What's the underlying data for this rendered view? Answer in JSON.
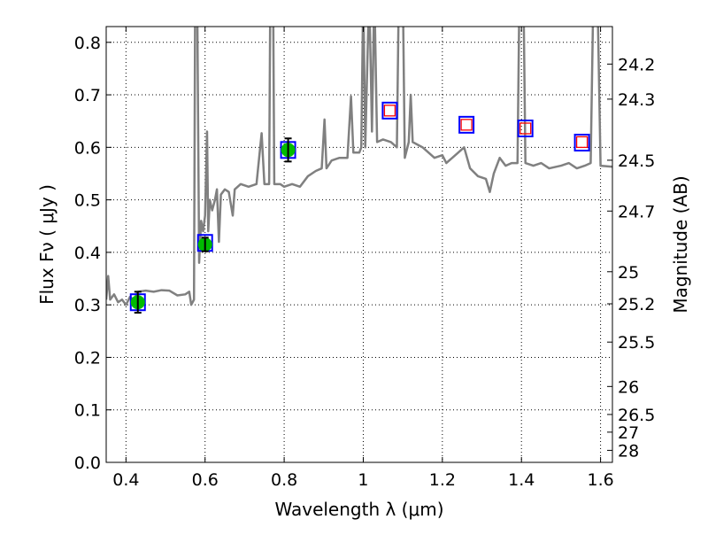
{
  "chart_data": {
    "type": "line",
    "xlabel": "Wavelength  λ (μm)",
    "ylabel": "Flux  Fν  ( μJy )",
    "ylabel_right": "Magnitude (AB)",
    "xlim": [
      0.35,
      1.63
    ],
    "ylim": [
      0.0,
      0.83
    ],
    "grid": true,
    "x_ticks": [
      0.4,
      0.6,
      0.8,
      1.0,
      1.2,
      1.4,
      1.6
    ],
    "x_tick_labels": [
      "0.4",
      "0.6",
      "0.8",
      "1",
      "1.2",
      "1.4",
      "1.6"
    ],
    "y_ticks": [
      0.0,
      0.1,
      0.2,
      0.3,
      0.4,
      0.5,
      0.6,
      0.7,
      0.8
    ],
    "y_tick_labels": [
      "0.0",
      "0.1",
      "0.2",
      "0.3",
      "0.4",
      "0.5",
      "0.6",
      "0.7",
      "0.8"
    ],
    "right_ticks": [
      24.2,
      24.3,
      24.5,
      24.7,
      25,
      25.2,
      25.5,
      26,
      26.5,
      27,
      28
    ],
    "right_tick_labels": [
      "24.2",
      "24.3",
      "24.5",
      "24.7",
      "25",
      "25.2",
      "25.5",
      "26",
      "26.5",
      "27",
      "28"
    ],
    "colors": {
      "spectrum": "#808080",
      "observed": "#00bb00",
      "model": "#0000ff",
      "predicted": "#ff0000",
      "error": "#000000"
    },
    "spectrum": [
      [
        0.35,
        0.31
      ],
      [
        0.355,
        0.355
      ],
      [
        0.36,
        0.31
      ],
      [
        0.37,
        0.32
      ],
      [
        0.38,
        0.305
      ],
      [
        0.39,
        0.31
      ],
      [
        0.4,
        0.3
      ],
      [
        0.41,
        0.315
      ],
      [
        0.42,
        0.31
      ],
      [
        0.43,
        0.325
      ],
      [
        0.45,
        0.327
      ],
      [
        0.47,
        0.325
      ],
      [
        0.49,
        0.328
      ],
      [
        0.51,
        0.327
      ],
      [
        0.53,
        0.318
      ],
      [
        0.55,
        0.32
      ],
      [
        0.56,
        0.325
      ],
      [
        0.565,
        0.3
      ],
      [
        0.572,
        0.31
      ],
      [
        0.575,
        0.9
      ],
      [
        0.58,
        0.9
      ],
      [
        0.585,
        0.38
      ],
      [
        0.59,
        0.46
      ],
      [
        0.595,
        0.44
      ],
      [
        0.6,
        0.47
      ],
      [
        0.605,
        0.63
      ],
      [
        0.608,
        0.44
      ],
      [
        0.612,
        0.5
      ],
      [
        0.618,
        0.48
      ],
      [
        0.625,
        0.5
      ],
      [
        0.63,
        0.52
      ],
      [
        0.635,
        0.42
      ],
      [
        0.64,
        0.51
      ],
      [
        0.65,
        0.52
      ],
      [
        0.66,
        0.515
      ],
      [
        0.67,
        0.47
      ],
      [
        0.675,
        0.52
      ],
      [
        0.69,
        0.53
      ],
      [
        0.71,
        0.525
      ],
      [
        0.73,
        0.53
      ],
      [
        0.743,
        0.627
      ],
      [
        0.75,
        0.53
      ],
      [
        0.762,
        0.53
      ],
      [
        0.765,
        0.9
      ],
      [
        0.772,
        0.9
      ],
      [
        0.775,
        0.53
      ],
      [
        0.79,
        0.53
      ],
      [
        0.8,
        0.525
      ],
      [
        0.82,
        0.53
      ],
      [
        0.84,
        0.525
      ],
      [
        0.86,
        0.545
      ],
      [
        0.88,
        0.555
      ],
      [
        0.895,
        0.56
      ],
      [
        0.902,
        0.653
      ],
      [
        0.907,
        0.56
      ],
      [
        0.92,
        0.575
      ],
      [
        0.94,
        0.58
      ],
      [
        0.96,
        0.58
      ],
      [
        0.969,
        0.697
      ],
      [
        0.975,
        0.59
      ],
      [
        0.99,
        0.59
      ],
      [
        0.995,
        0.6
      ],
      [
        1.0,
        0.9
      ],
      [
        1.005,
        0.6
      ],
      [
        1.015,
        0.9
      ],
      [
        1.022,
        0.63
      ],
      [
        1.028,
        0.9
      ],
      [
        1.035,
        0.61
      ],
      [
        1.05,
        0.615
      ],
      [
        1.07,
        0.61
      ],
      [
        1.085,
        0.6
      ],
      [
        1.09,
        0.9
      ],
      [
        1.1,
        0.9
      ],
      [
        1.105,
        0.58
      ],
      [
        1.115,
        0.61
      ],
      [
        1.12,
        0.7
      ],
      [
        1.125,
        0.61
      ],
      [
        1.15,
        0.6
      ],
      [
        1.18,
        0.58
      ],
      [
        1.2,
        0.585
      ],
      [
        1.21,
        0.57
      ],
      [
        1.24,
        0.59
      ],
      [
        1.255,
        0.6
      ],
      [
        1.27,
        0.56
      ],
      [
        1.29,
        0.545
      ],
      [
        1.31,
        0.54
      ],
      [
        1.32,
        0.515
      ],
      [
        1.33,
        0.55
      ],
      [
        1.345,
        0.58
      ],
      [
        1.36,
        0.565
      ],
      [
        1.375,
        0.57
      ],
      [
        1.39,
        0.57
      ],
      [
        1.395,
        0.9
      ],
      [
        1.405,
        0.9
      ],
      [
        1.41,
        0.57
      ],
      [
        1.43,
        0.565
      ],
      [
        1.45,
        0.57
      ],
      [
        1.47,
        0.56
      ],
      [
        1.5,
        0.565
      ],
      [
        1.52,
        0.57
      ],
      [
        1.54,
        0.56
      ],
      [
        1.56,
        0.565
      ],
      [
        1.575,
        0.57
      ],
      [
        1.582,
        0.9
      ],
      [
        1.592,
        0.9
      ],
      [
        1.6,
        0.565
      ],
      [
        1.63,
        0.563
      ]
    ],
    "observed": [
      {
        "x": 0.43,
        "y": 0.305,
        "err": 0.02
      },
      {
        "x": 0.6,
        "y": 0.415,
        "err": 0.013
      },
      {
        "x": 0.81,
        "y": 0.595,
        "err": 0.022
      }
    ],
    "model_points": [
      {
        "x": 0.43,
        "y": 0.305
      },
      {
        "x": 0.6,
        "y": 0.418
      },
      {
        "x": 0.81,
        "y": 0.595
      },
      {
        "x": 1.067,
        "y": 0.67
      },
      {
        "x": 1.261,
        "y": 0.643
      },
      {
        "x": 1.41,
        "y": 0.636
      },
      {
        "x": 1.553,
        "y": 0.609
      }
    ],
    "predicted_points": [
      {
        "x": 1.067,
        "y": 0.67
      },
      {
        "x": 1.261,
        "y": 0.643
      },
      {
        "x": 1.41,
        "y": 0.636
      },
      {
        "x": 1.553,
        "y": 0.61
      }
    ]
  }
}
